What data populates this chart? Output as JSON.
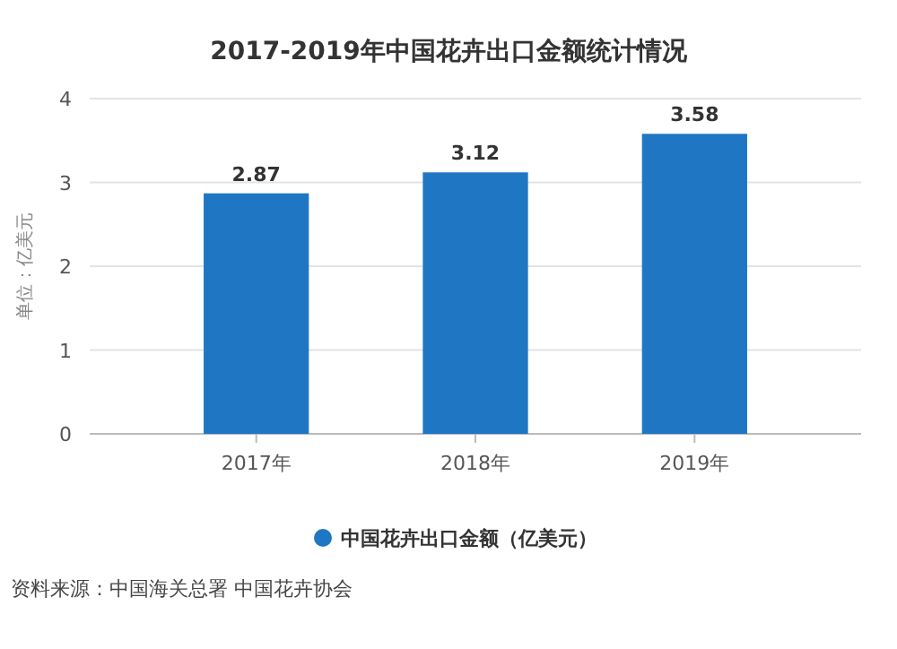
{
  "chart_data": {
    "type": "bar",
    "title": "2017-2019年中国花卉出口金额统计情况",
    "ylabel": "单位：亿美元",
    "categories": [
      "2017年",
      "2018年",
      "2019年"
    ],
    "series": [
      {
        "name": "中国花卉出口金额（亿美元）",
        "color": "#1f77c4",
        "values": [
          2.87,
          3.12,
          3.58
        ]
      }
    ],
    "ylim": [
      0,
      4
    ],
    "yticks": [
      0,
      1,
      2,
      3,
      4
    ],
    "grid": "y",
    "legend": "bottom",
    "data_labels": true,
    "annotations": [
      "资料来源：中国海关总署 中国花卉协会"
    ]
  }
}
